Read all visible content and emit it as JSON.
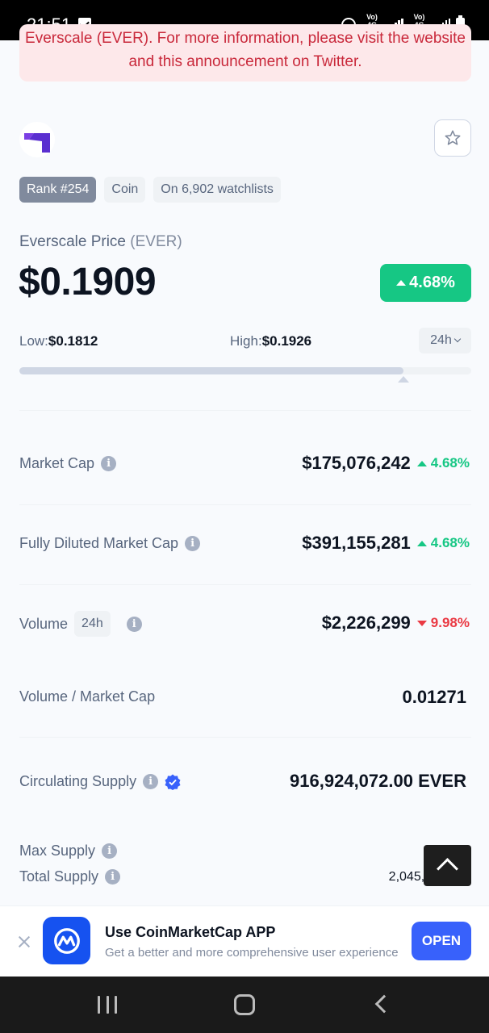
{
  "status_bar": {
    "time": "21:51",
    "sim1": "Vo) 4G LTE1",
    "sim2": "Vo) 4G LTE2"
  },
  "announcement": {
    "text": "Everscale (EVER). For more information, please visit the website and this announcement on Twitter.",
    "color": "#c9293b"
  },
  "coin": {
    "logo_icon": "everscale-logo-icon",
    "tags": [
      "Rank #254",
      "Coin",
      "On 6,902 watchlists"
    ],
    "name_label": "Everscale Price",
    "symbol": "(EVER)",
    "price": "$0.1909",
    "change": "4.68%",
    "low_label": "Low:",
    "low_value": "$0.1812",
    "high_label": "High:",
    "high_value": "$0.1926",
    "range": "24h",
    "range_position": 0.85
  },
  "stats": {
    "market_cap": {
      "label": "Market Cap",
      "value": "$175,076,242",
      "change": "4.68%",
      "direction": "up"
    },
    "fdmc": {
      "label": "Fully Diluted Market Cap",
      "value": "$391,155,281",
      "change": "4.68%",
      "direction": "up"
    },
    "volume": {
      "label": "Volume",
      "period": "24h",
      "value": "$2,226,299",
      "change": "9.98%",
      "direction": "down"
    },
    "vol_mcap": {
      "label": "Volume / Market Cap",
      "value": "0.01271"
    },
    "circulating": {
      "label": "Circulating Supply",
      "value": "916,924,072.00 EVER"
    },
    "max_supply": {
      "label": "Max Supply",
      "value": "--"
    },
    "total_supply": {
      "label": "Total Supply",
      "value": "2,045,348,232"
    }
  },
  "banner": {
    "title": "Use CoinMarketCap APP",
    "subtitle": "Get a better and more comprehensive user experience",
    "button": "OPEN"
  },
  "colors": {
    "green": "#16c784",
    "red": "#ea3943",
    "blue": "#3861fb"
  }
}
